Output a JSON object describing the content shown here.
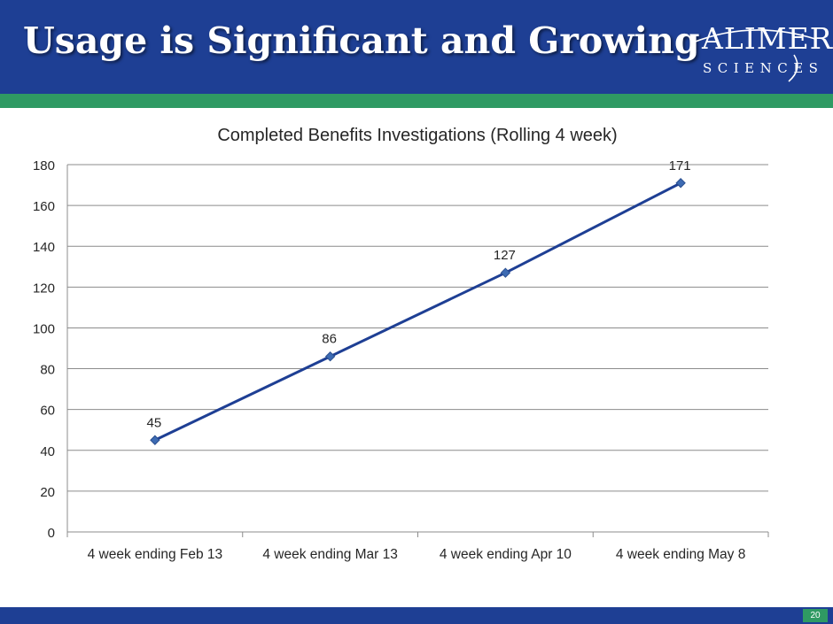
{
  "slide": {
    "title": "Usage is Significant and Growing",
    "page_number": "20",
    "logo": {
      "name": "ALIMERA",
      "subtitle": "SCIENCES"
    },
    "colors": {
      "header": "#1e3f94",
      "band": "#2f9a63",
      "series": "#1e3f94"
    }
  },
  "chart_data": {
    "type": "line",
    "title": "Completed Benefits Investigations (Rolling 4 week)",
    "categories": [
      "4 week ending Feb 13",
      "4 week ending Mar 13",
      "4 week ending Apr 10",
      "4 week ending May 8"
    ],
    "series": [
      {
        "values": [
          45,
          86,
          127,
          171
        ],
        "color": "#1e3f94",
        "marker": "diamond"
      }
    ],
    "data_labels": [
      "45",
      "86",
      "127",
      "171"
    ],
    "ylim": [
      0,
      180
    ],
    "yticks": [
      0,
      20,
      40,
      60,
      80,
      100,
      120,
      140,
      160,
      180
    ],
    "grid": true,
    "legend": "none"
  }
}
